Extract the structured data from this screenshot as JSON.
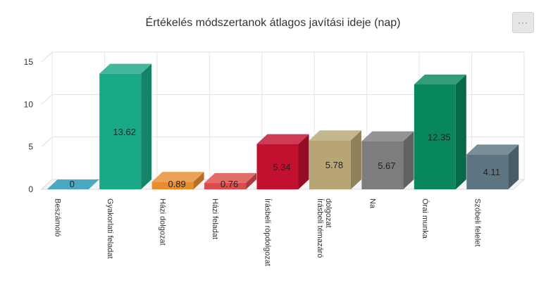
{
  "menu": {
    "label": "···",
    "icon": "ellipsis-icon"
  },
  "chart_data": {
    "type": "bar",
    "title": "Értékelés módszertanok átlagos javítási ideje (nap)",
    "xlabel": "",
    "ylabel": "",
    "ylim": [
      0,
      15
    ],
    "yticks": [
      0,
      5,
      10,
      15
    ],
    "grid": true,
    "legend": "none",
    "three_d": true,
    "categories": [
      [
        "Beszámoló"
      ],
      [
        "Gyakorlati feladat"
      ],
      [
        "Házi dolgozat"
      ],
      [
        "Házi feladat"
      ],
      [
        "Írásbeli röpdolgozat"
      ],
      [
        "Írásbeli témazáró",
        "dolgozat"
      ],
      [
        "Na"
      ],
      [
        "Órai munka"
      ],
      [
        "Szóbeli felelet"
      ]
    ],
    "values": [
      0,
      13.62,
      0.89,
      0.76,
      5.34,
      5.78,
      5.67,
      12.35,
      4.11
    ],
    "data_labels": [
      "0",
      "13.62",
      "0.89",
      "0.76",
      "5.34",
      "5.78",
      "5.67",
      "12.35",
      "4.11"
    ],
    "colors": [
      "#2196b3",
      "#1aa986",
      "#e88d2e",
      "#dc4c4c",
      "#c2102f",
      "#b7a674",
      "#7d7d7d",
      "#08885a",
      "#5d7582"
    ]
  }
}
